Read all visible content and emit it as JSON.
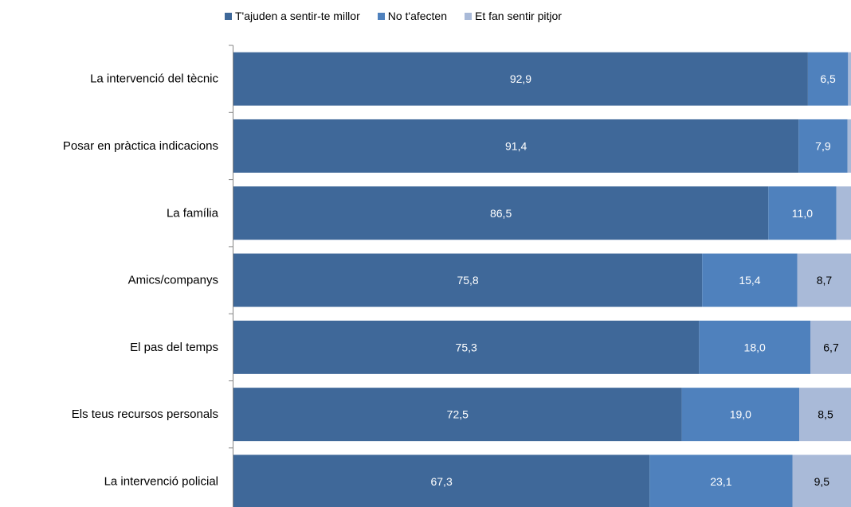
{
  "chart_data": {
    "type": "bar",
    "orientation": "horizontal",
    "stacked": true,
    "legend_position": "top",
    "grid": false,
    "xlim": [
      0,
      100
    ],
    "categories": [
      "La intervenció del tècnic",
      "Posar en pràctica indicacions",
      "La família",
      "Amics/companys",
      "El pas del temps",
      "Els teus recursos personals",
      "La intervenció policial"
    ],
    "series": [
      {
        "name": "T'ajuden a sentir-te millor",
        "color": "#3F6899",
        "label_color": "#ffffff",
        "values": [
          92.9,
          91.4,
          86.5,
          75.8,
          75.3,
          72.5,
          67.3
        ],
        "labels": [
          "92,9",
          "91,4",
          "86,5",
          "75,8",
          "75,3",
          "72,5",
          "67,3"
        ]
      },
      {
        "name": "No t'afecten",
        "color": "#4F81BD",
        "label_color": "#ffffff",
        "values": [
          6.5,
          7.9,
          11.0,
          15.4,
          18.0,
          19.0,
          23.1
        ],
        "labels": [
          "6,5",
          "7,9",
          "11,0",
          "15,4",
          "18,0",
          "19,0",
          "23,1"
        ]
      },
      {
        "name": "Et fan sentir pitjor",
        "color": "#A9BAD8",
        "label_color": "#000000",
        "values": [
          0.6,
          0.7,
          2.5,
          8.7,
          6.7,
          8.5,
          9.5
        ],
        "labels": [
          "",
          "",
          "",
          "8,7",
          "6,7",
          "8,5",
          "9,5"
        ]
      }
    ]
  }
}
